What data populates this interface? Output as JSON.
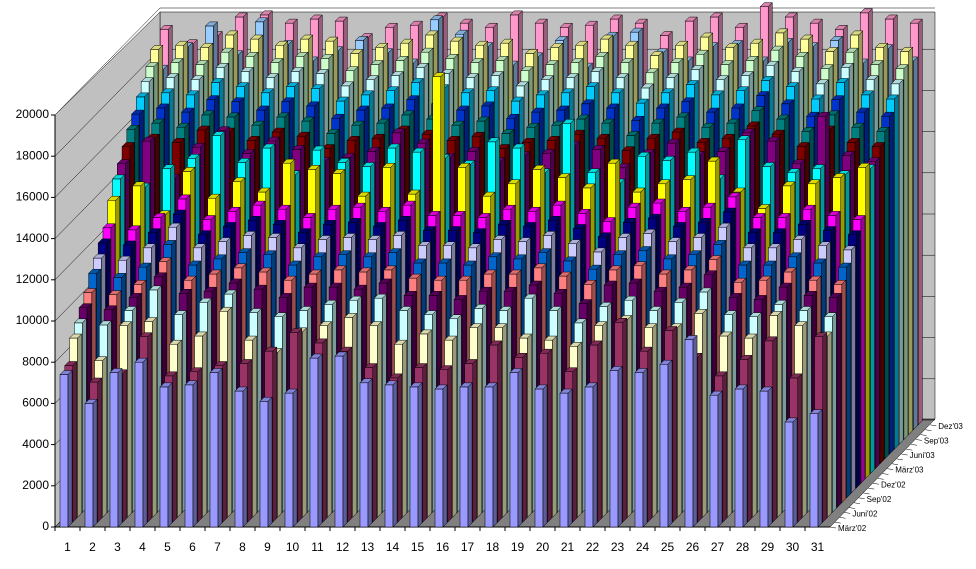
{
  "chart_data": {
    "type": "bar3d",
    "categories": [
      "1",
      "2",
      "3",
      "4",
      "5",
      "6",
      "7",
      "8",
      "9",
      "10",
      "11",
      "12",
      "13",
      "14",
      "15",
      "16",
      "17",
      "18",
      "19",
      "20",
      "21",
      "22",
      "23",
      "24",
      "25",
      "26",
      "27",
      "28",
      "29",
      "30",
      "31"
    ],
    "ylim": [
      0,
      20000
    ],
    "yticks": [
      0,
      2000,
      4000,
      6000,
      8000,
      10000,
      12000,
      14000,
      16000,
      18000,
      20000
    ],
    "grid": true,
    "series": [
      {
        "name": "März'02",
        "color": "#9999ff",
        "values": [
          7400,
          6000,
          7500,
          8000,
          6800,
          6900,
          7500,
          6600,
          6100,
          6500,
          8200,
          8300,
          7000,
          6900,
          6800,
          6700,
          6800,
          6800,
          7500,
          6700,
          6500,
          6800,
          7600,
          7500,
          7900,
          9100,
          6400,
          6700,
          6600,
          5100,
          5500
        ]
      },
      {
        "name": null,
        "color": "#993366",
        "values": [
          7600,
          6800,
          7200,
          9000,
          7100,
          7300,
          7600,
          7700,
          8300,
          9200,
          8700,
          8300,
          7500,
          7000,
          7500,
          7400,
          7700,
          8600,
          8000,
          8200,
          7300,
          8600,
          9700,
          8300,
          9300,
          8000,
          7100,
          7900,
          8800,
          7000,
          9000
        ]
      },
      {
        "name": null,
        "color": "#ffffcc",
        "values": [
          8700,
          7600,
          9300,
          9500,
          8400,
          8800,
          10000,
          8600,
          8000,
          9000,
          9300,
          9700,
          9300,
          8400,
          8900,
          8600,
          9200,
          9200,
          8700,
          8600,
          8300,
          9300,
          9600,
          9200,
          9200,
          9900,
          8800,
          8700,
          9800,
          9300,
          8800
        ]
      },
      {
        "name": "Juni'02",
        "color": "#ccffff",
        "values": [
          9200,
          9100,
          9800,
          10800,
          9600,
          10200,
          10600,
          9700,
          9500,
          9800,
          10100,
          10300,
          10400,
          9800,
          9600,
          9400,
          9900,
          9800,
          10400,
          9800,
          9200,
          10000,
          10300,
          9800,
          10200,
          10700,
          9600,
          9500,
          10100,
          9800,
          9500
        ]
      },
      {
        "name": null,
        "color": "#660066",
        "values": [
          9700,
          9600,
          10200,
          11200,
          10400,
          10500,
          10900,
          10600,
          10200,
          10700,
          10700,
          10600,
          10900,
          10300,
          10300,
          10100,
          10500,
          10500,
          10800,
          10400,
          9900,
          10800,
          10900,
          10500,
          10700,
          11300,
          10200,
          10100,
          10700,
          10300,
          10200
        ]
      },
      {
        "name": null,
        "color": "#ff8080",
        "values": [
          10200,
          10100,
          10600,
          11700,
          10800,
          11100,
          11400,
          11200,
          10800,
          11100,
          11300,
          11200,
          11300,
          10900,
          10800,
          10800,
          11100,
          11100,
          11400,
          11000,
          10600,
          11300,
          11500,
          11100,
          11300,
          11800,
          10700,
          10800,
          11200,
          10800,
          10600
        ]
      },
      {
        "name": "Sep'02",
        "color": "#0066cc",
        "values": [
          10900,
          10700,
          11200,
          12300,
          11300,
          11600,
          11900,
          11800,
          11300,
          11700,
          11800,
          11700,
          11900,
          11400,
          11400,
          11300,
          11700,
          11600,
          11900,
          11500,
          11100,
          11800,
          12000,
          11600,
          11800,
          12300,
          11300,
          11300,
          11700,
          11400,
          11200
        ]
      },
      {
        "name": null,
        "color": "#ccccff",
        "values": [
          11400,
          11300,
          11900,
          12900,
          11900,
          12200,
          12500,
          12400,
          11900,
          12300,
          12400,
          12300,
          12500,
          12000,
          12000,
          11900,
          12300,
          12200,
          12500,
          12100,
          11700,
          12400,
          12600,
          12200,
          12400,
          12900,
          11900,
          11900,
          12300,
          12000,
          11800
        ]
      },
      {
        "name": null,
        "color": "#000080",
        "values": [
          11900,
          11800,
          12400,
          13300,
          12300,
          12700,
          13000,
          12800,
          12400,
          12800,
          12900,
          12700,
          13000,
          12500,
          12500,
          12400,
          12800,
          12700,
          13000,
          12600,
          12200,
          12900,
          13100,
          12700,
          12900,
          13400,
          12400,
          12400,
          12800,
          12500,
          12300
        ]
      },
      {
        "name": "Dez'02",
        "color": "#ff00ff",
        "values": [
          12400,
          12300,
          12900,
          13800,
          12800,
          13200,
          13500,
          13300,
          12900,
          13300,
          13400,
          13200,
          13500,
          13000,
          13000,
          12900,
          13300,
          13200,
          13500,
          13100,
          12700,
          13400,
          13600,
          13200,
          13400,
          13900,
          12900,
          12900,
          13300,
          13000,
          12800
        ]
      },
      {
        "name": null,
        "color": "#ffff00",
        "values": [
          13500,
          14200,
          12800,
          14900,
          13600,
          14400,
          13900,
          15300,
          15000,
          14800,
          13700,
          15100,
          13800,
          19500,
          15100,
          13700,
          14300,
          15000,
          14600,
          14100,
          15300,
          13900,
          14300,
          14500,
          15400,
          13900,
          13100,
          14200,
          14300,
          14600,
          15100
        ]
      },
      {
        "name": null,
        "color": "#00ffff",
        "values": [
          14300,
          13900,
          14800,
          15300,
          16400,
          15100,
          15800,
          14500,
          15700,
          15100,
          14900,
          15800,
          15600,
          15300,
          15000,
          16100,
          15800,
          14600,
          17000,
          14600,
          14100,
          15400,
          15200,
          15600,
          14300,
          16200,
          14900,
          14600,
          14800,
          14500,
          14800
        ]
      },
      {
        "name": "März'03",
        "color": "#800080",
        "values": [
          14800,
          15900,
          14100,
          15600,
          16400,
          15300,
          15900,
          15500,
          14900,
          15100,
          15400,
          16300,
          15800,
          15100,
          15400,
          14900,
          15200,
          15300,
          15700,
          15500,
          14600,
          15300,
          15800,
          15200,
          15400,
          16300,
          15900,
          14800,
          17100,
          15200,
          14900
        ]
      },
      {
        "name": null,
        "color": "#800000",
        "values": [
          15400,
          15800,
          15600,
          16200,
          16100,
          15700,
          16100,
          15900,
          15300,
          15700,
          15800,
          16200,
          16000,
          15700,
          15900,
          15300,
          15600,
          15700,
          16000,
          15800,
          15200,
          15800,
          16100,
          15600,
          15800,
          16400,
          16000,
          15400,
          16200,
          15600,
          15400
        ]
      },
      {
        "name": null,
        "color": "#008080",
        "values": [
          16000,
          16300,
          16100,
          16700,
          16600,
          16200,
          16600,
          16400,
          15800,
          16200,
          16300,
          16700,
          16500,
          16200,
          16400,
          15800,
          16100,
          16200,
          16500,
          16300,
          15700,
          16300,
          16600,
          16100,
          16300,
          16900,
          16500,
          15900,
          16700,
          16100,
          15900
        ]
      },
      {
        "name": "Juni'03",
        "color": "#0033cc",
        "values": [
          16500,
          16800,
          16600,
          17200,
          17100,
          16700,
          17100,
          16900,
          16300,
          16700,
          16800,
          17200,
          17000,
          16700,
          16900,
          16300,
          16600,
          16700,
          17000,
          16800,
          16200,
          16800,
          17100,
          16600,
          16800,
          17400,
          17000,
          16400,
          17200,
          16600,
          16400
        ]
      },
      {
        "name": null,
        "color": "#00ccff",
        "values": [
          17100,
          17300,
          17200,
          17800,
          17600,
          17300,
          17600,
          17500,
          16900,
          17200,
          17400,
          17800,
          17500,
          17300,
          17400,
          16900,
          17200,
          17300,
          17600,
          17300,
          16800,
          17300,
          17700,
          17200,
          17400,
          17900,
          17600,
          17000,
          17800,
          17200,
          17000
        ]
      },
      {
        "name": null,
        "color": "#ccffff",
        "values": [
          17600,
          17800,
          17700,
          18300,
          18100,
          17800,
          18100,
          18000,
          17400,
          17700,
          17900,
          18300,
          18000,
          17800,
          17900,
          17400,
          17700,
          17800,
          18100,
          17800,
          17300,
          17800,
          18200,
          17700,
          17900,
          18400,
          18100,
          17500,
          18300,
          17700,
          17500
        ]
      },
      {
        "name": "Sep'03",
        "color": "#ccffcc",
        "values": [
          18100,
          18300,
          18200,
          18800,
          18600,
          18300,
          18600,
          18500,
          17900,
          18200,
          18400,
          18800,
          18500,
          18300,
          18400,
          17900,
          18200,
          18300,
          18600,
          18300,
          17800,
          18300,
          18700,
          18200,
          18400,
          18900,
          18600,
          18000,
          18800,
          18200,
          18000
        ]
      },
      {
        "name": null,
        "color": "#ffff99",
        "values": [
          18700,
          18900,
          18800,
          19400,
          19200,
          18900,
          19200,
          19100,
          18500,
          18800,
          19000,
          19400,
          19100,
          18900,
          19000,
          18500,
          18800,
          18900,
          19200,
          18900,
          18400,
          18900,
          19300,
          18800,
          19000,
          19500,
          19200,
          18600,
          19400,
          18800,
          18600
        ]
      },
      {
        "name": null,
        "color": "#99ccff",
        "values": [
          17500,
          18600,
          19600,
          18200,
          19800,
          18700,
          17900,
          18400,
          18900,
          18300,
          17800,
          19900,
          19200,
          18600,
          17700,
          18100,
          18900,
          17600,
          19100,
          19300,
          18300,
          17900,
          18600,
          18700,
          17900,
          18800,
          18600,
          18900,
          17800,
          18500,
          17900
        ]
      },
      {
        "name": "Dez'03",
        "color": "#ff99cc",
        "values": [
          19200,
          18500,
          18900,
          19800,
          19900,
          19500,
          19700,
          19600,
          18800,
          19300,
          19400,
          19800,
          19500,
          19300,
          19900,
          19500,
          19300,
          19400,
          19700,
          19500,
          18900,
          19600,
          19800,
          19300,
          20300,
          19800,
          19500,
          19200,
          20000,
          19700,
          19500
        ]
      }
    ]
  }
}
